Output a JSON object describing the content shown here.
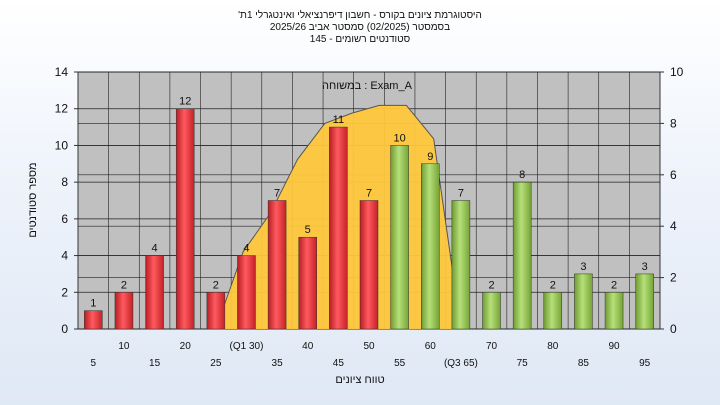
{
  "chart_data": {
    "type": "bar",
    "title_lines": [
      "'היסטוגרמת ציונים בקורס - חשבון דיפרנציאלי ואינטגרלי 1ת",
      "בסמסטר  (02/2025)  סמסטר אביב 2025/26",
      "סטודנטים רשומים - 145"
    ],
    "xlabel": "טווח ציונים",
    "ylabel": "מספר סטודנטים",
    "ylim": [
      0,
      14
    ],
    "y2lim": [
      0,
      10
    ],
    "y_ticks": [
      0,
      2,
      4,
      6,
      8,
      10,
      12,
      14
    ],
    "y2_ticks": [
      0,
      2,
      4,
      6,
      8,
      10
    ],
    "grid": true,
    "legend_label": "במשוחה : Exam_A",
    "categories": [
      "5",
      "10",
      "15",
      "20",
      "25",
      "(Q1 30)",
      "35",
      "40",
      "45",
      "50",
      "55",
      "60",
      "(Q3 65)",
      "70",
      "75",
      "80",
      "85",
      "90",
      "95"
    ],
    "values": [
      1,
      2,
      4,
      12,
      2,
      4,
      7,
      5,
      11,
      7,
      10,
      9,
      7,
      2,
      8,
      2,
      3,
      2,
      3
    ],
    "bar_colors": [
      "red",
      "red",
      "red",
      "red",
      "red",
      "red",
      "red",
      "red",
      "red",
      "red",
      "green",
      "green",
      "green",
      "green",
      "green",
      "green",
      "green",
      "green",
      "green"
    ],
    "area_series": {
      "x_start": "25",
      "x_end": "(Q3 65)",
      "y_values": [
        0,
        3,
        4.5,
        6.6,
        8.0,
        8.4,
        8.7,
        8.7,
        7.4,
        0
      ],
      "axis": "secondary"
    },
    "colors": {
      "red": "#e0353b",
      "green": "#8fc04a",
      "area": "#ffc83d",
      "plot_bg": "#c0c0c0"
    }
  }
}
